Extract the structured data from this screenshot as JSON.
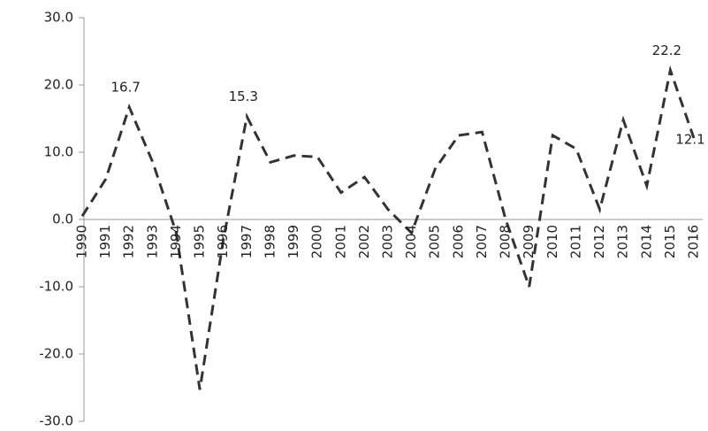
{
  "chart_data": {
    "type": "line",
    "categories": [
      "1990",
      "1991",
      "1992",
      "1993",
      "1994",
      "1995",
      "1996",
      "1997",
      "1998",
      "1999",
      "2000",
      "2001",
      "2002",
      "2003",
      "2004",
      "2005",
      "2006",
      "2007",
      "2008",
      "2009",
      "2010",
      "2011",
      "2012",
      "2013",
      "2014",
      "2015",
      "2016"
    ],
    "values": [
      0.5,
      6,
      16.7,
      8.5,
      -2,
      -25.3,
      -3,
      15.3,
      8.5,
      9.5,
      9.3,
      4,
      6.3,
      1.5,
      -2,
      7.5,
      12.5,
      13,
      0,
      -10,
      12.5,
      10.5,
      1.5,
      14.8,
      5,
      22.2,
      12.1
    ],
    "value_labels": [
      null,
      null,
      "16.7",
      null,
      null,
      null,
      null,
      "15.3",
      null,
      null,
      null,
      null,
      null,
      null,
      null,
      null,
      null,
      null,
      null,
      null,
      null,
      null,
      null,
      null,
      null,
      "22.2",
      "12.1"
    ],
    "color": "#333333",
    "ylim": [
      -30,
      30
    ],
    "yticks": [
      {
        "value": -30,
        "label": "-30.0"
      },
      {
        "value": -20,
        "label": "-20.0"
      },
      {
        "value": -10,
        "label": "-10.0"
      },
      {
        "value": 0,
        "label": "0.0"
      },
      {
        "value": 10,
        "label": "10.0"
      },
      {
        "value": 20,
        "label": "20.0"
      },
      {
        "value": 30,
        "label": "30.0"
      }
    ]
  }
}
